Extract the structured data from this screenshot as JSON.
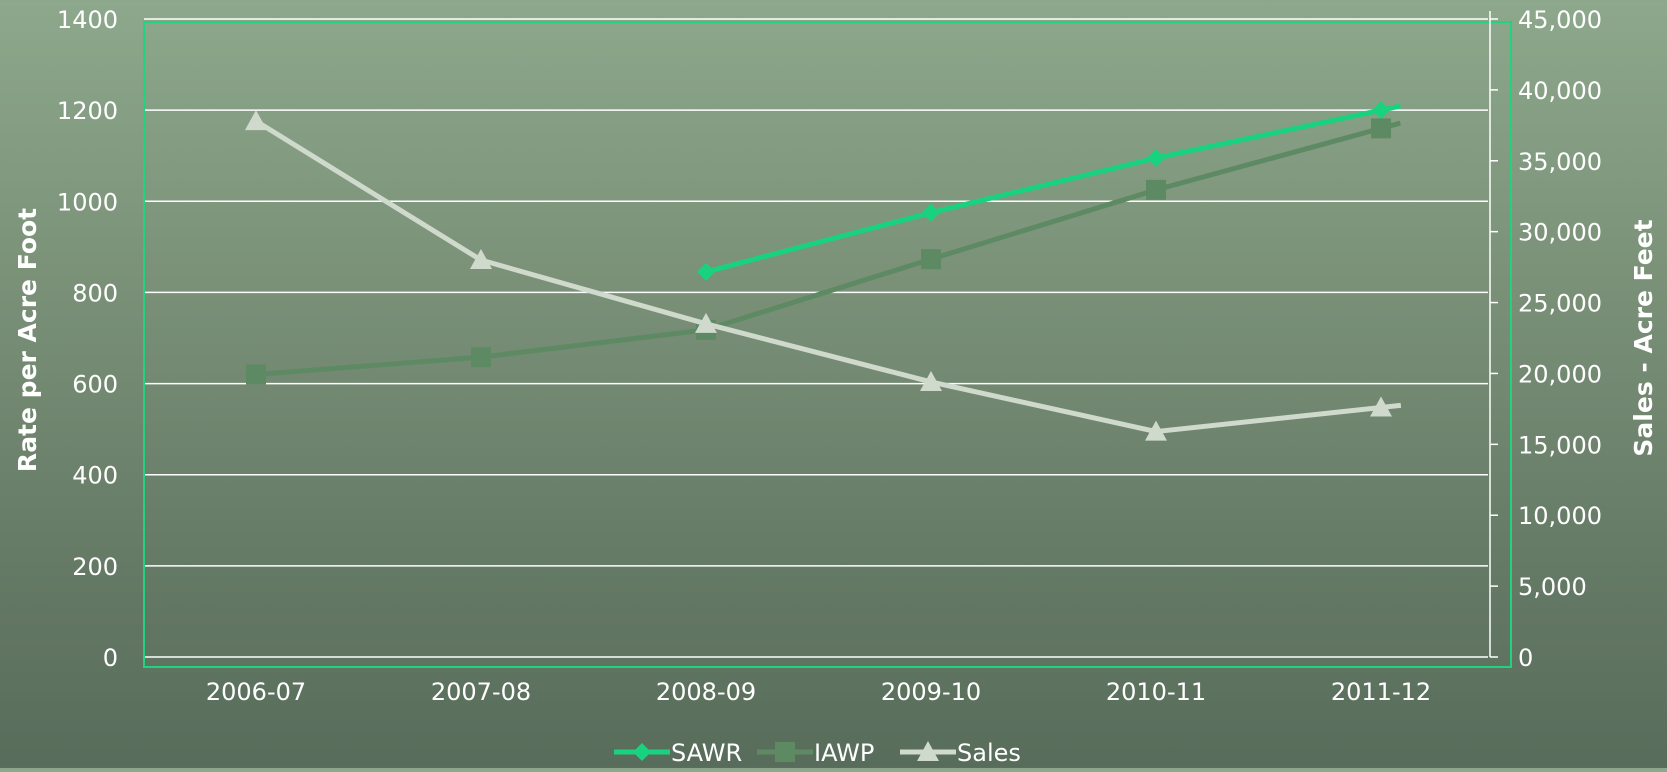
{
  "chart_data": {
    "type": "line",
    "categories": [
      "2006-07",
      "2007-08",
      "2008-09",
      "2009-10",
      "2010-11",
      "2011-12"
    ],
    "y_left": {
      "label": "Rate per Acre Foot",
      "range": [
        0,
        1400
      ],
      "ticks": [
        "0",
        "200",
        "400",
        "600",
        "800",
        "1000",
        "1200",
        "1400"
      ]
    },
    "y_right": {
      "label": "Sales - Acre Feet",
      "range": [
        0,
        45000
      ],
      "ticks": [
        "0",
        "5,000",
        "10,000",
        "15,000",
        "20,000",
        "25,000",
        "30,000",
        "35,000",
        "40,000",
        "45,000"
      ]
    },
    "grid": true,
    "legend_position": "bottom",
    "series": [
      {
        "name": "SAWR",
        "axis": "left",
        "marker": "diamond",
        "color": "#19d27f",
        "values": [
          null,
          null,
          845,
          975,
          1095,
          1200
        ]
      },
      {
        "name": "IAWP",
        "axis": "left",
        "marker": "square",
        "color": "#5e8a63",
        "values": [
          620,
          658,
          718,
          873,
          1025,
          1160
        ]
      },
      {
        "name": "Sales",
        "axis": "right",
        "marker": "triangle",
        "color": "#cfdacd",
        "values": [
          37800,
          28000,
          23500,
          19400,
          15900,
          17600
        ]
      }
    ]
  }
}
